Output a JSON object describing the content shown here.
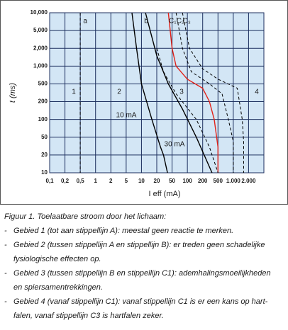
{
  "chart_data": {
    "type": "line",
    "xlabel": "I eff (mA)",
    "ylabel": "t (ms)",
    "log_scale": "1-2-5",
    "xlim": [
      0.1,
      5000
    ],
    "ylim": [
      10,
      10000
    ],
    "xticks": [
      {
        "value": 0.1,
        "label": "0,1"
      },
      {
        "value": 0.2,
        "label": "0,2"
      },
      {
        "value": 0.5,
        "label": "0,5"
      },
      1,
      2,
      5,
      10,
      20,
      50,
      100,
      200,
      500,
      {
        "value": 1000,
        "label": "1.000"
      },
      {
        "value": 2000,
        "label": "2.000"
      }
    ],
    "yticks": [
      10,
      20,
      50,
      100,
      200,
      500,
      {
        "value": 1000,
        "label": "1,000"
      },
      {
        "value": 2000,
        "label": "2,000"
      },
      {
        "value": 5000,
        "label": "5,000"
      },
      {
        "value": 10000,
        "label": "10,000"
      }
    ],
    "grid": true,
    "series": [
      {
        "name": "a",
        "color": "#000000",
        "dash": true,
        "x": [
          0.5,
          0.5
        ],
        "values": [
          10000,
          10
        ]
      },
      {
        "name": "b",
        "color": "#000000",
        "dash": false,
        "x": [
          6.5,
          8,
          10,
          16,
          25,
          30,
          38
        ],
        "values": [
          10000,
          2000,
          500,
          100,
          30,
          20,
          10
        ]
      },
      {
        "name": "C₁",
        "color": "#e2231a",
        "dash": false,
        "x": [
          40,
          50,
          60,
          100,
          200,
          300,
          400,
          500,
          500
        ],
        "values": [
          10000,
          2000,
          1000,
          600,
          400,
          200,
          100,
          30,
          10
        ]
      },
      {
        "name": "C₂",
        "color": "#000000",
        "dash": true,
        "x": [
          60,
          80,
          120,
          300,
          600,
          800,
          1000,
          1000
        ],
        "values": [
          10000,
          2000,
          800,
          500,
          300,
          100,
          40,
          10
        ]
      },
      {
        "name": "C₃",
        "color": "#000000",
        "dash": true,
        "x": [
          80,
          110,
          200,
          500,
          1200,
          1500,
          1600,
          1600
        ],
        "values": [
          10000,
          2000,
          900,
          600,
          400,
          100,
          40,
          10
        ]
      },
      {
        "color": "#000000",
        "dash": false,
        "x": [
          12,
          20,
          40,
          80,
          150,
          350
        ],
        "values": [
          10000,
          1500,
          500,
          150,
          50,
          10
        ]
      },
      {
        "color": "#000000",
        "dash": true,
        "x": [
          20,
          30,
          60,
          150,
          300,
          500
        ],
        "values": [
          2000,
          800,
          300,
          100,
          30,
          10
        ]
      }
    ],
    "annotations": [
      "1",
      "2",
      "3",
      "4",
      "10 mA",
      "30 mA"
    ]
  },
  "figure_caption": {
    "title": "Figuur 1. Toelaatbare stroom door het lichaam:",
    "items": [
      [
        "Gebied 1 (tot aan stippellijn A): meestal geen reactie te merken."
      ],
      [
        "Gebied 2 (tussen stippellijn A en stippellijn B): er treden geen schadelijke",
        "fysiologische effecten op."
      ],
      [
        "Gebied 3 (tussen stippellijn B en stippellijn C1): ademhalingsmoeilijkheden",
        "en spiersamentrekkingen."
      ],
      [
        "Gebied 4 (vanaf stippellijn C1): vanaf stippellijn C1 is er een kans op hart-",
        "falen, vanaf stippellijn C3 is hartfalen zeker."
      ]
    ]
  }
}
